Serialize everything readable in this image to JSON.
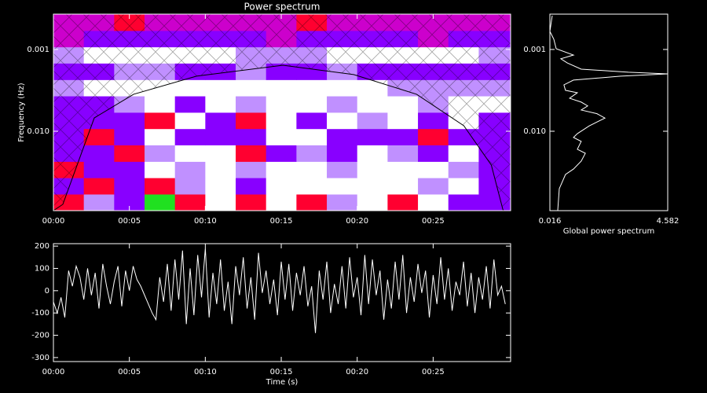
{
  "chart_data": [
    {
      "type": "heatmap",
      "title": "Power spectrum",
      "ylabel": "Frequency (Hz)",
      "x_bins": [
        0,
        2,
        4,
        6,
        8,
        10,
        12,
        14,
        16,
        18,
        20,
        22,
        24,
        26,
        28,
        30.1
      ],
      "y_bins": [
        0.0935,
        0.0587,
        0.037,
        0.0234,
        0.0147,
        0.0093,
        0.00587,
        0.0037,
        0.00234,
        0.00147,
        0.00093,
        0.000587,
        0.00037
      ],
      "z": [
        [
          4,
          2,
          1,
          5,
          4,
          3,
          4,
          3,
          4,
          2,
          3,
          4,
          3,
          1,
          1
        ],
        [
          1,
          4,
          1,
          4,
          2,
          3,
          1,
          3,
          3,
          3,
          3,
          3,
          2,
          3,
          1
        ],
        [
          4,
          1,
          1,
          3,
          2,
          3,
          2,
          3,
          3,
          2,
          3,
          3,
          3,
          2,
          1
        ],
        [
          1,
          1,
          4,
          2,
          3,
          3,
          4,
          1,
          2,
          1,
          3,
          2,
          1,
          3,
          1
        ],
        [
          1,
          4,
          1,
          3,
          1,
          1,
          1,
          3,
          3,
          1,
          1,
          1,
          4,
          1,
          1
        ],
        [
          1,
          1,
          1,
          4,
          3,
          1,
          4,
          3,
          1,
          3,
          2,
          3,
          1,
          3,
          1
        ],
        [
          1,
          1,
          2,
          3,
          1,
          3,
          2,
          3,
          3,
          2,
          3,
          3,
          2,
          3,
          3
        ],
        [
          2,
          3,
          3,
          3,
          3,
          3,
          3,
          3,
          3,
          3,
          3,
          2,
          2,
          2,
          2
        ],
        [
          1,
          1,
          2,
          2,
          1,
          1,
          2,
          1,
          1,
          2,
          1,
          1,
          1,
          1,
          1
        ],
        [
          2,
          3,
          3,
          3,
          3,
          3,
          2,
          2,
          2,
          3,
          3,
          3,
          3,
          3,
          2
        ],
        [
          0,
          1,
          1,
          1,
          1,
          1,
          1,
          0,
          1,
          1,
          1,
          1,
          0,
          1,
          1
        ],
        [
          0,
          0,
          4,
          0,
          0,
          0,
          0,
          0,
          4,
          0,
          0,
          0,
          0,
          0,
          0
        ]
      ],
      "colorscale": [
        "#cc00cc",
        "#8800ff",
        "#c090ff",
        "#ffffff",
        "#ff0030",
        "#20e020"
      ],
      "coi_x": [
        0,
        0.62,
        2.69,
        5.28,
        9.42,
        15.11,
        19.77,
        23.91,
        27.02,
        28.83,
        29.61
      ],
      "coi_y": [
        0.0935,
        0.0783,
        0.00687,
        0.00353,
        0.00212,
        0.00156,
        0.00203,
        0.00353,
        0.00857,
        0.0259,
        0.0935
      ],
      "coi_color": "#000000",
      "xlim": [
        0,
        30.1
      ],
      "xticks": [
        {
          "value": 0,
          "label": "00:00"
        },
        {
          "value": 5,
          "label": "00:05"
        },
        {
          "value": 10,
          "label": "00:10"
        },
        {
          "value": 15,
          "label": "00:15"
        },
        {
          "value": 20,
          "label": "00:20"
        },
        {
          "value": 25,
          "label": "00:25"
        }
      ],
      "ylim": [
        0.0935,
        0.00037
      ],
      "ylog": true,
      "yticks": [
        0.001,
        {
          "value": 0.01,
          "label": "0.010"
        }
      ]
    },
    {
      "type": "profile",
      "xlabel": "Global power spectrum",
      "color": "#ffffff",
      "y": [
        0.000386,
        0.000601,
        0.00075,
        0.00098,
        0.00117,
        0.0013,
        0.00146,
        0.00174,
        0.0019,
        0.00199,
        0.00212,
        0.00237,
        0.00271,
        0.00316,
        0.00338,
        0.00395,
        0.0044,
        0.0049,
        0.0055,
        0.0061,
        0.0069,
        0.0086,
        0.0107,
        0.0119,
        0.0133,
        0.0166,
        0.0186,
        0.0232,
        0.029,
        0.0338,
        0.0504,
        0.0935
      ],
      "values": [
        0.107,
        0.016,
        0.168,
        0.26,
        0.93,
        0.44,
        0.69,
        1.23,
        3.06,
        4.58,
        2.76,
        0.93,
        0.56,
        0.62,
        1.08,
        0.78,
        1.23,
        1.48,
        1.23,
        1.84,
        2.15,
        1.54,
        1.08,
        0.93,
        1.23,
        1.08,
        1.39,
        1.23,
        0.93,
        0.62,
        0.38,
        0.32
      ],
      "xlim": [
        0.016,
        4.582
      ],
      "xticks": [
        0.016,
        4.582
      ],
      "ylim": [
        0.0935,
        0.00037
      ],
      "ylog": true,
      "yticks": [
        0.001,
        {
          "value": 0.01,
          "label": "0.010"
        }
      ]
    },
    {
      "type": "line",
      "xlabel": "Time (s)",
      "color": "#ffffff",
      "x": [
        0,
        0.25,
        0.5,
        0.75,
        1,
        1.25,
        1.5,
        1.75,
        2,
        2.25,
        2.5,
        2.75,
        3,
        3.25,
        3.5,
        3.75,
        4,
        4.25,
        4.5,
        4.75,
        5,
        5.25,
        5.5,
        5.75,
        6,
        6.25,
        6.5,
        6.75,
        7,
        7.25,
        7.5,
        7.75,
        8,
        8.25,
        8.5,
        8.75,
        9,
        9.25,
        9.5,
        9.75,
        10,
        10.25,
        10.5,
        10.75,
        11,
        11.25,
        11.5,
        11.75,
        12,
        12.25,
        12.5,
        12.75,
        13,
        13.25,
        13.5,
        13.75,
        14,
        14.25,
        14.5,
        14.75,
        15,
        15.25,
        15.5,
        15.75,
        16,
        16.25,
        16.5,
        16.75,
        17,
        17.25,
        17.5,
        17.75,
        18,
        18.25,
        18.5,
        18.75,
        19,
        19.25,
        19.5,
        19.75,
        20,
        20.25,
        20.5,
        20.75,
        21,
        21.25,
        21.5,
        21.75,
        22,
        22.25,
        22.5,
        22.75,
        23,
        23.25,
        23.5,
        23.75,
        24,
        24.25,
        24.5,
        24.75,
        25,
        25.25,
        25.5,
        25.75,
        26,
        26.25,
        26.5,
        26.75,
        27,
        27.25,
        27.5,
        27.75,
        28,
        28.25,
        28.5,
        28.75,
        29,
        29.25,
        29.5,
        29.75
      ],
      "values": [
        -50,
        -100,
        -30,
        -120,
        90,
        20,
        110,
        60,
        -40,
        100,
        -20,
        80,
        -80,
        120,
        20,
        -60,
        40,
        110,
        -70,
        90,
        0,
        110,
        50,
        20,
        -20,
        -60,
        -100,
        -130,
        60,
        -50,
        120,
        -90,
        140,
        -40,
        180,
        -150,
        100,
        -110,
        160,
        -30,
        190,
        -120,
        80,
        -60,
        140,
        -90,
        40,
        -150,
        110,
        -20,
        150,
        -80,
        60,
        -130,
        170,
        -10,
        90,
        -60,
        50,
        -110,
        130,
        -40,
        120,
        -90,
        80,
        -20,
        110,
        -70,
        20,
        -190,
        90,
        -40,
        130,
        -100,
        30,
        -60,
        110,
        -80,
        150,
        -30,
        60,
        -110,
        160,
        -60,
        140,
        -20,
        90,
        -130,
        50,
        -80,
        130,
        -40,
        160,
        -100,
        60,
        -50,
        120,
        -10,
        90,
        -120,
        70,
        -60,
        150,
        -40,
        100,
        -90,
        40,
        -20,
        130,
        -70,
        80,
        -100,
        60,
        -40,
        110,
        -80,
        140,
        -20,
        20,
        -60
      ],
      "xlim": [
        0,
        30.1
      ],
      "xticks": [
        {
          "value": 0,
          "label": "00:00"
        },
        {
          "value": 5,
          "label": "00:05"
        },
        {
          "value": 10,
          "label": "00:10"
        },
        {
          "value": 15,
          "label": "00:15"
        },
        {
          "value": 20,
          "label": "00:20"
        },
        {
          "value": 25,
          "label": "00:25"
        }
      ],
      "ylim": [
        -318,
        211
      ],
      "yticks": [
        -300,
        -200,
        -100,
        0,
        100,
        200
      ]
    }
  ]
}
